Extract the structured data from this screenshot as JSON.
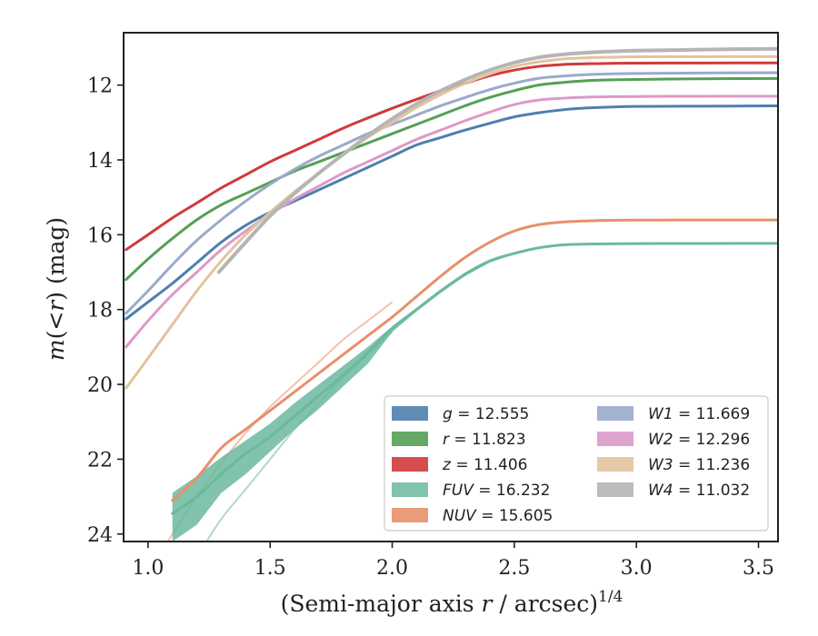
{
  "chart_data": {
    "type": "line",
    "xlabel": "(Semi-major axis r / arcsec)^{1/4}",
    "xlabel_parts": [
      "(Semi-major axis ",
      "r",
      " / arcsec)",
      "1/4"
    ],
    "ylabel": "m(<r) (mag)",
    "ylabel_parts": [
      "m",
      "(<",
      "r",
      ") (mag)"
    ],
    "xlim": [
      0.9,
      3.58
    ],
    "ylim": [
      24.2,
      10.6
    ],
    "y_inverted": true,
    "x_ticks": [
      1.0,
      1.5,
      2.0,
      2.5,
      3.0,
      3.5
    ],
    "x_tick_labels": [
      "1.0",
      "1.5",
      "2.0",
      "2.5",
      "3.0",
      "3.5"
    ],
    "y_ticks": [
      12,
      14,
      16,
      18,
      20,
      22,
      24
    ],
    "y_tick_labels": [
      "12",
      "14",
      "16",
      "18",
      "20",
      "22",
      "24"
    ],
    "grid": false,
    "legend_position": "lower-right",
    "legend_columns": 2,
    "series": [
      {
        "name": "g = 12.555",
        "sym": "g",
        "value": "12.555",
        "color": "#4e7fae",
        "x": [
          0.91,
          1.0,
          1.1,
          1.2,
          1.3,
          1.4,
          1.5,
          1.6,
          1.7,
          1.8,
          1.9,
          2.0,
          2.1,
          2.2,
          2.3,
          2.4,
          2.5,
          2.6,
          2.7,
          2.8,
          2.9,
          3.0,
          3.2,
          3.4,
          3.58
        ],
        "y": [
          18.25,
          17.8,
          17.3,
          16.75,
          16.2,
          15.75,
          15.4,
          15.1,
          14.8,
          14.5,
          14.2,
          13.9,
          13.6,
          13.4,
          13.2,
          13.02,
          12.85,
          12.74,
          12.66,
          12.61,
          12.585,
          12.57,
          12.565,
          12.56,
          12.555
        ]
      },
      {
        "name": "r = 11.823",
        "sym": "r",
        "value": "11.823",
        "color": "#55a055",
        "x": [
          0.91,
          1.0,
          1.1,
          1.2,
          1.3,
          1.4,
          1.5,
          1.6,
          1.7,
          1.8,
          1.9,
          2.0,
          2.1,
          2.2,
          2.3,
          2.4,
          2.5,
          2.6,
          2.7,
          2.8,
          2.9,
          3.0,
          3.2,
          3.4,
          3.58
        ],
        "y": [
          17.2,
          16.65,
          16.1,
          15.6,
          15.2,
          14.9,
          14.6,
          14.3,
          14.05,
          13.8,
          13.55,
          13.3,
          13.05,
          12.8,
          12.55,
          12.33,
          12.15,
          12.0,
          11.93,
          11.88,
          11.86,
          11.85,
          11.835,
          11.828,
          11.823
        ]
      },
      {
        "name": "z = 11.406",
        "sym": "z",
        "value": "11.406",
        "color": "#d03a3a",
        "x": [
          0.91,
          1.0,
          1.1,
          1.2,
          1.3,
          1.4,
          1.5,
          1.6,
          1.7,
          1.8,
          1.9,
          2.0,
          2.1,
          2.2,
          2.3,
          2.4,
          2.5,
          2.6,
          2.7,
          2.8,
          2.9,
          3.0,
          3.2,
          3.4,
          3.58
        ],
        "y": [
          16.4,
          16.0,
          15.55,
          15.15,
          14.75,
          14.4,
          14.05,
          13.75,
          13.45,
          13.15,
          12.88,
          12.62,
          12.38,
          12.15,
          11.95,
          11.75,
          11.6,
          11.5,
          11.45,
          11.43,
          11.42,
          11.415,
          11.41,
          11.408,
          11.406
        ]
      },
      {
        "name": "FUV = 16.232",
        "sym": "FUV",
        "value": "16.232",
        "color": "#6bb99e",
        "band": true,
        "x": [
          1.1,
          1.2,
          1.3,
          1.4,
          1.5,
          1.6,
          1.7,
          1.8,
          1.9,
          2.0,
          2.1,
          2.2,
          2.3,
          2.4,
          2.5,
          2.6,
          2.7,
          2.8,
          2.93,
          3.1,
          3.3,
          3.58
        ],
        "y": [
          23.45,
          23.0,
          22.4,
          21.85,
          21.4,
          20.85,
          20.3,
          19.75,
          19.15,
          18.5,
          18.0,
          17.5,
          17.05,
          16.7,
          16.5,
          16.35,
          16.27,
          16.25,
          16.24,
          16.235,
          16.233,
          16.232
        ],
        "y_lo": [
          22.9,
          22.45,
          21.95,
          21.5,
          21.05,
          20.5,
          20.0,
          19.5,
          19.0,
          18.45,
          17.95,
          17.45,
          17.0,
          16.68,
          16.48,
          16.34,
          16.27,
          16.25,
          16.24,
          16.235,
          16.233,
          16.232
        ],
        "y_hi": [
          24.2,
          23.75,
          22.9,
          22.4,
          21.8,
          21.2,
          20.65,
          20.05,
          19.45,
          18.6,
          18.05,
          17.55,
          17.1,
          16.74,
          16.52,
          16.37,
          16.28,
          16.25,
          16.24,
          16.235,
          16.233,
          16.232
        ],
        "ghost_x": [
          1.1,
          1.2,
          1.3,
          1.4,
          1.5,
          1.6,
          1.7,
          1.8,
          1.9,
          2.0
        ],
        "ghost_y": [
          25.6,
          24.6,
          23.6,
          22.8,
          22.0,
          21.2,
          20.5,
          19.8,
          19.2,
          18.6
        ]
      },
      {
        "name": "NUV = 15.605",
        "sym": "NUV",
        "value": "15.605",
        "color": "#e8906a",
        "x": [
          1.1,
          1.2,
          1.3,
          1.4,
          1.5,
          1.6,
          1.7,
          1.8,
          1.9,
          2.0,
          2.1,
          2.2,
          2.3,
          2.4,
          2.5,
          2.6,
          2.7,
          2.8,
          2.9,
          3.0,
          3.16,
          3.3,
          3.58
        ],
        "y": [
          23.1,
          22.5,
          21.7,
          21.2,
          20.7,
          20.2,
          19.7,
          19.2,
          18.7,
          18.2,
          17.65,
          17.1,
          16.6,
          16.2,
          15.9,
          15.73,
          15.66,
          15.63,
          15.615,
          15.61,
          15.607,
          15.606,
          15.605
        ],
        "ghost_x": [
          0.91,
          1.0,
          1.1,
          1.2,
          1.3,
          1.4,
          1.5,
          1.6,
          1.7,
          1.8,
          1.9,
          2.0
        ],
        "ghost_y": [
          25.8,
          25.0,
          24.0,
          23.0,
          22.1,
          21.3,
          20.6,
          20.0,
          19.4,
          18.8,
          18.3,
          17.8
        ]
      },
      {
        "name": "W1 = 11.669",
        "sym": "W1",
        "value": "11.669",
        "color": "#9aaacb",
        "x": [
          0.91,
          1.0,
          1.1,
          1.2,
          1.3,
          1.4,
          1.5,
          1.6,
          1.7,
          1.8,
          1.9,
          2.0,
          2.1,
          2.2,
          2.3,
          2.4,
          2.5,
          2.6,
          2.7,
          2.8,
          2.9,
          3.0,
          3.2,
          3.4,
          3.58
        ],
        "y": [
          18.1,
          17.5,
          16.8,
          16.15,
          15.6,
          15.1,
          14.65,
          14.25,
          13.9,
          13.6,
          13.3,
          13.05,
          12.8,
          12.55,
          12.33,
          12.12,
          11.95,
          11.82,
          11.76,
          11.72,
          11.7,
          11.69,
          11.68,
          11.672,
          11.669
        ]
      },
      {
        "name": "W2 = 12.296",
        "sym": "W2",
        "value": "12.296",
        "color": "#dd99c8",
        "x": [
          0.91,
          1.0,
          1.1,
          1.2,
          1.3,
          1.4,
          1.5,
          1.6,
          1.7,
          1.8,
          1.9,
          2.0,
          2.1,
          2.2,
          2.3,
          2.4,
          2.5,
          2.6,
          2.7,
          2.8,
          2.9,
          3.0,
          3.2,
          3.4,
          3.58
        ],
        "y": [
          19.0,
          18.3,
          17.6,
          17.0,
          16.4,
          15.9,
          15.45,
          15.05,
          14.7,
          14.35,
          14.05,
          13.75,
          13.45,
          13.2,
          12.95,
          12.72,
          12.52,
          12.4,
          12.35,
          12.32,
          12.31,
          12.305,
          12.3,
          12.298,
          12.296
        ]
      },
      {
        "name": "W3 = 11.236",
        "sym": "W3",
        "value": "11.236",
        "color": "#e3c39c",
        "x": [
          0.91,
          1.0,
          1.1,
          1.2,
          1.3,
          1.4,
          1.5,
          1.6,
          1.7,
          1.8,
          1.9,
          2.0,
          2.1,
          2.2,
          2.3,
          2.4,
          2.5,
          2.6,
          2.7,
          2.8,
          2.9,
          3.0,
          3.3,
          3.58
        ],
        "y": [
          20.1,
          19.3,
          18.4,
          17.5,
          16.7,
          16.0,
          15.4,
          14.85,
          14.35,
          13.85,
          13.4,
          13.0,
          12.6,
          12.25,
          11.95,
          11.7,
          11.5,
          11.38,
          11.3,
          11.27,
          11.255,
          11.245,
          11.24,
          11.236
        ]
      },
      {
        "name": "W4 = 11.032",
        "sym": "W4",
        "value": "11.032",
        "color": "#b5b5b5",
        "thick": true,
        "x": [
          1.29,
          1.4,
          1.5,
          1.6,
          1.7,
          1.8,
          1.9,
          2.0,
          2.1,
          2.2,
          2.3,
          2.4,
          2.5,
          2.6,
          2.7,
          2.8,
          2.9,
          3.0,
          3.2,
          3.4,
          3.58
        ],
        "y": [
          17.0,
          16.2,
          15.5,
          14.9,
          14.35,
          13.85,
          13.35,
          12.9,
          12.5,
          12.15,
          11.85,
          11.6,
          11.4,
          11.26,
          11.18,
          11.13,
          11.1,
          11.08,
          11.06,
          11.04,
          11.032
        ]
      }
    ]
  }
}
